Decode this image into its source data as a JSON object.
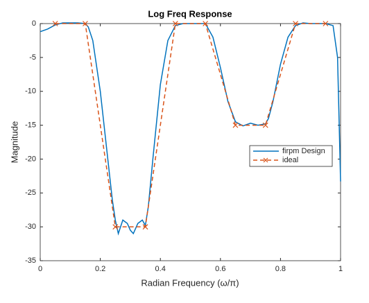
{
  "chart_data": {
    "type": "line",
    "title": "Log Freq Response",
    "x_label": "Radian Frequency (ω/π)",
    "y_label": "Magnitude",
    "xlim": [
      0,
      1
    ],
    "ylim": [
      -35,
      0
    ],
    "xticks": [
      0,
      0.2,
      0.4,
      0.6,
      0.8,
      1
    ],
    "yticks": [
      -35,
      -30,
      -25,
      -20,
      -15,
      -10,
      -5,
      0
    ],
    "grid": false,
    "legend": "east",
    "series": [
      {
        "name": "firpm Design",
        "color": "#0072bd",
        "style": "solid",
        "marker": "none",
        "x": [
          0,
          0.025,
          0.05,
          0.075,
          0.1,
          0.125,
          0.15,
          0.16,
          0.175,
          0.2,
          0.225,
          0.24,
          0.25,
          0.26,
          0.275,
          0.29,
          0.3,
          0.31,
          0.325,
          0.34,
          0.35,
          0.36,
          0.375,
          0.4,
          0.425,
          0.45,
          0.475,
          0.5,
          0.525,
          0.55,
          0.575,
          0.6,
          0.625,
          0.65,
          0.675,
          0.7,
          0.725,
          0.75,
          0.76,
          0.775,
          0.8,
          0.825,
          0.85,
          0.875,
          0.9,
          0.925,
          0.95,
          0.975,
          0.99,
          1
        ],
        "values": [
          -1.2,
          -0.8,
          -0.2,
          0.1,
          0.1,
          0.1,
          0,
          -0.5,
          -2.5,
          -10,
          -20,
          -26,
          -29,
          -31,
          -29,
          -29.5,
          -30.5,
          -31,
          -29.5,
          -29,
          -29.8,
          -27,
          -20,
          -9,
          -2.5,
          -0.3,
          0,
          0,
          0,
          0,
          -2,
          -6.5,
          -11.5,
          -14.5,
          -15.1,
          -14.7,
          -15,
          -14.8,
          -14,
          -11.5,
          -6,
          -2,
          -0.3,
          0.1,
          0,
          0,
          0,
          -0.3,
          -5,
          -23.3
        ]
      },
      {
        "name": "ideal",
        "color": "#d95319",
        "style": "dashed",
        "marker": "x",
        "x": [
          0.05,
          0.15,
          0.25,
          0.35,
          0.45,
          0.55,
          0.65,
          0.75,
          0.85,
          0.95
        ],
        "values": [
          0,
          0,
          -30,
          -30,
          0,
          0,
          -15,
          -15,
          0,
          0
        ]
      }
    ]
  }
}
